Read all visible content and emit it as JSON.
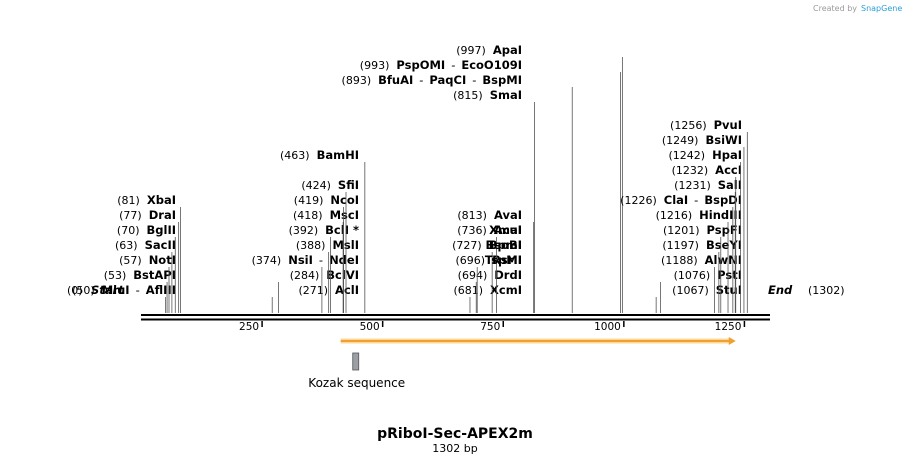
{
  "credit": {
    "text": "Created by",
    "brand": "SnapGene"
  },
  "title": "pRiboI-Sec-APEX2m",
  "subtitle": "1302 bp",
  "seq_length": 1302,
  "start": {
    "pos": "(0)",
    "label": "Start"
  },
  "end": {
    "label": "End",
    "pos": "(1302)"
  },
  "ticks": [
    250,
    500,
    750,
    1000,
    1250
  ],
  "features": [
    {
      "label": "Kozak sequence",
      "start": 440,
      "end": 451,
      "color": "#9aa0a6"
    },
    {
      "label": "",
      "start": 413,
      "end": 1232,
      "color": "#f0a030",
      "arrow": true
    }
  ],
  "sites": [
    {
      "pos": 50,
      "names": [
        "MluI",
        "AflIII"
      ]
    },
    {
      "pos": 53,
      "names": [
        "BstAPI"
      ]
    },
    {
      "pos": 57,
      "names": [
        "NotI"
      ]
    },
    {
      "pos": 63,
      "names": [
        "SacII"
      ]
    },
    {
      "pos": 70,
      "names": [
        "BglII"
      ]
    },
    {
      "pos": 77,
      "names": [
        "DraI"
      ]
    },
    {
      "pos": 81,
      "names": [
        "XbaI"
      ]
    },
    {
      "pos": 271,
      "names": [
        "AclI"
      ]
    },
    {
      "pos": 284,
      "names": [
        "BclVI"
      ]
    },
    {
      "pos": 374,
      "names": [
        "NsiI",
        "NdeI"
      ]
    },
    {
      "pos": 388,
      "names": [
        "MslI"
      ]
    },
    {
      "pos": 392,
      "names": [
        "BclI *"
      ]
    },
    {
      "pos": 418,
      "names": [
        "MscI"
      ]
    },
    {
      "pos": 419,
      "names": [
        "NcoI"
      ]
    },
    {
      "pos": 424,
      "names": [
        "SfiI"
      ]
    },
    {
      "pos": 463,
      "names": [
        "BamHI"
      ]
    },
    {
      "pos": 681,
      "names": [
        "XcmI"
      ]
    },
    {
      "pos": 694,
      "names": [
        "DrdI"
      ]
    },
    {
      "pos": 696,
      "names": [
        "RsrII"
      ]
    },
    {
      "pos": 727,
      "names": [
        "BpmI"
      ]
    },
    {
      "pos": 736,
      "names": [
        "AcuI"
      ]
    },
    {
      "pos": 813,
      "names": [
        "AvaI"
      ],
      "extra": [
        "XmaI",
        "BsoBI",
        "TspMI"
      ]
    },
    {
      "pos": 815,
      "names": [
        "SmaI"
      ]
    },
    {
      "pos": 893,
      "names": [
        "BfuAI",
        "PaqCI",
        "BspMI"
      ]
    },
    {
      "pos": 993,
      "names": [
        "PspOMI",
        "EcoO109I"
      ]
    },
    {
      "pos": 997,
      "names": [
        "ApaI"
      ]
    },
    {
      "pos": 1067,
      "names": [
        "StuI"
      ]
    },
    {
      "pos": 1076,
      "names": [
        "PstI"
      ]
    },
    {
      "pos": 1188,
      "names": [
        "AlwNI"
      ]
    },
    {
      "pos": 1197,
      "names": [
        "BseYI"
      ]
    },
    {
      "pos": 1201,
      "names": [
        "PspFI"
      ]
    },
    {
      "pos": 1216,
      "names": [
        "HindIII"
      ]
    },
    {
      "pos": 1226,
      "names": [
        "ClaI",
        "BspDI"
      ]
    },
    {
      "pos": 1231,
      "names": [
        "SalI"
      ]
    },
    {
      "pos": 1232,
      "names": [
        "AccI"
      ]
    },
    {
      "pos": 1242,
      "names": [
        "HpaI"
      ]
    },
    {
      "pos": 1249,
      "names": [
        "BsiWI"
      ]
    },
    {
      "pos": 1256,
      "names": [
        "PvuI"
      ]
    }
  ]
}
